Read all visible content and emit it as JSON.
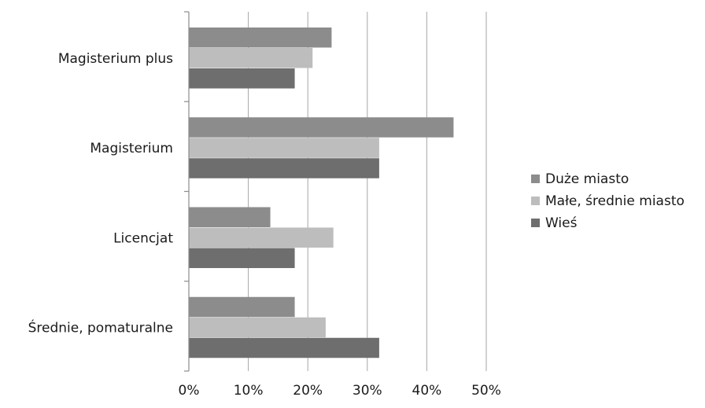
{
  "chart_data": {
    "type": "bar",
    "orientation": "horizontal",
    "categories": [
      "Magisterium plus",
      "Magisterium",
      "Licencjat",
      "Średnie, pomaturalne"
    ],
    "series": [
      {
        "name": "Duże miasto",
        "color": "#8c8c8c",
        "values": [
          24,
          44.5,
          13.7,
          17.8
        ]
      },
      {
        "name": "Małe, średnie miasto",
        "color": "#bdbdbd",
        "values": [
          20.8,
          32,
          24.3,
          23
        ]
      },
      {
        "name": "Wieś",
        "color": "#6e6e6e",
        "values": [
          17.8,
          32,
          17.8,
          32
        ]
      }
    ],
    "xlim": [
      0,
      50
    ],
    "xticks": [
      0,
      10,
      20,
      30,
      40,
      50
    ],
    "xtick_labels": [
      "0%",
      "10%",
      "20%",
      "30%",
      "40%",
      "50%"
    ],
    "grid": true,
    "legend_position": "right"
  }
}
